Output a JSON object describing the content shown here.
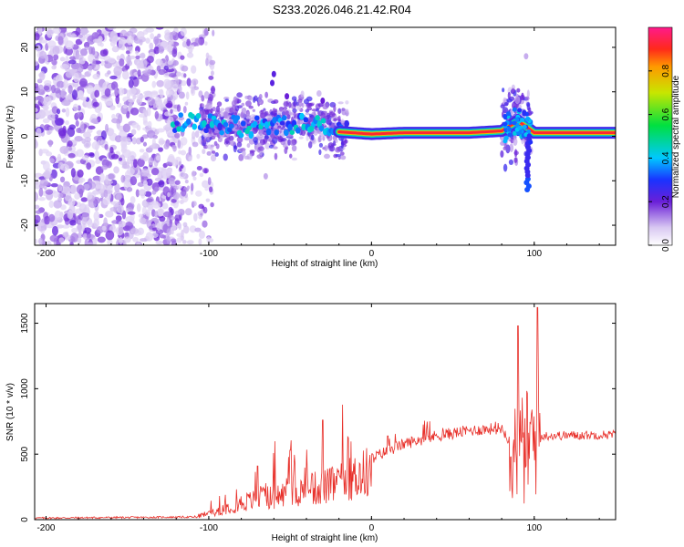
{
  "title": "S233.2026.046.21.42.R04",
  "chart_data": [
    {
      "type": "heatmap",
      "xlabel": "Height of straight line (km)",
      "ylabel": "Frequency (Hz)",
      "xlim": [
        -207,
        150
      ],
      "ylim": [
        -24.5,
        24.5
      ],
      "xticks": [
        -200,
        -100,
        0,
        100
      ],
      "yticks": [
        -20,
        -10,
        0,
        10,
        20
      ],
      "colorbar": {
        "label": "Normalized spectral amplitude",
        "range": [
          0,
          1
        ],
        "ticks": [
          "0.0",
          "0.2",
          "0.4",
          "0.6",
          "0.8"
        ],
        "tick_values": [
          0.0,
          0.2,
          0.4,
          0.6,
          0.8
        ]
      },
      "ridge": [
        {
          "x": -120,
          "f": 3.0
        },
        {
          "x": -100,
          "f": 2.8
        },
        {
          "x": -80,
          "f": 2.2
        },
        {
          "x": -60,
          "f": 2.5
        },
        {
          "x": -40,
          "f": 3.0
        },
        {
          "x": -20,
          "f": 1.0
        },
        {
          "x": 0,
          "f": 0.5
        },
        {
          "x": 20,
          "f": 0.8
        },
        {
          "x": 60,
          "f": 0.8
        },
        {
          "x": 80,
          "f": 1.2
        },
        {
          "x": 90,
          "f": 3.5
        },
        {
          "x": 100,
          "f": 0.8
        },
        {
          "x": 150,
          "f": 0.8
        }
      ]
    },
    {
      "type": "line",
      "xlabel": "Height of straight line (km)",
      "ylabel": "SNR (10 * v/v)",
      "xlim": [
        -207,
        150
      ],
      "ylim": [
        0,
        1650
      ],
      "xticks": [
        -200,
        -100,
        0,
        100
      ],
      "yticks": [
        0,
        500,
        1000,
        1500
      ],
      "series": [
        {
          "name": "SNR",
          "color": "#e8302a",
          "trend": [
            {
              "x": -207,
              "y": 12
            },
            {
              "x": -110,
              "y": 20
            },
            {
              "x": -100,
              "y": 60
            },
            {
              "x": -80,
              "y": 160
            },
            {
              "x": -60,
              "y": 220
            },
            {
              "x": -40,
              "y": 280
            },
            {
              "x": -20,
              "y": 340
            },
            {
              "x": 0,
              "y": 470
            },
            {
              "x": 20,
              "y": 580
            },
            {
              "x": 40,
              "y": 640
            },
            {
              "x": 60,
              "y": 680
            },
            {
              "x": 80,
              "y": 700
            },
            {
              "x": 90,
              "y": 500
            },
            {
              "x": 100,
              "y": 600
            },
            {
              "x": 105,
              "y": 640
            },
            {
              "x": 150,
              "y": 650
            }
          ],
          "peaks": [
            {
              "x": -70,
              "y": 410
            },
            {
              "x": -50,
              "y": 530
            },
            {
              "x": -30,
              "y": 760
            },
            {
              "x": 10,
              "y": 640
            },
            {
              "x": 90,
              "y": 1480
            },
            {
              "x": 102,
              "y": 1620
            }
          ]
        }
      ]
    }
  ],
  "colors": {
    "line": "#e8302a",
    "axis": "#000000"
  }
}
